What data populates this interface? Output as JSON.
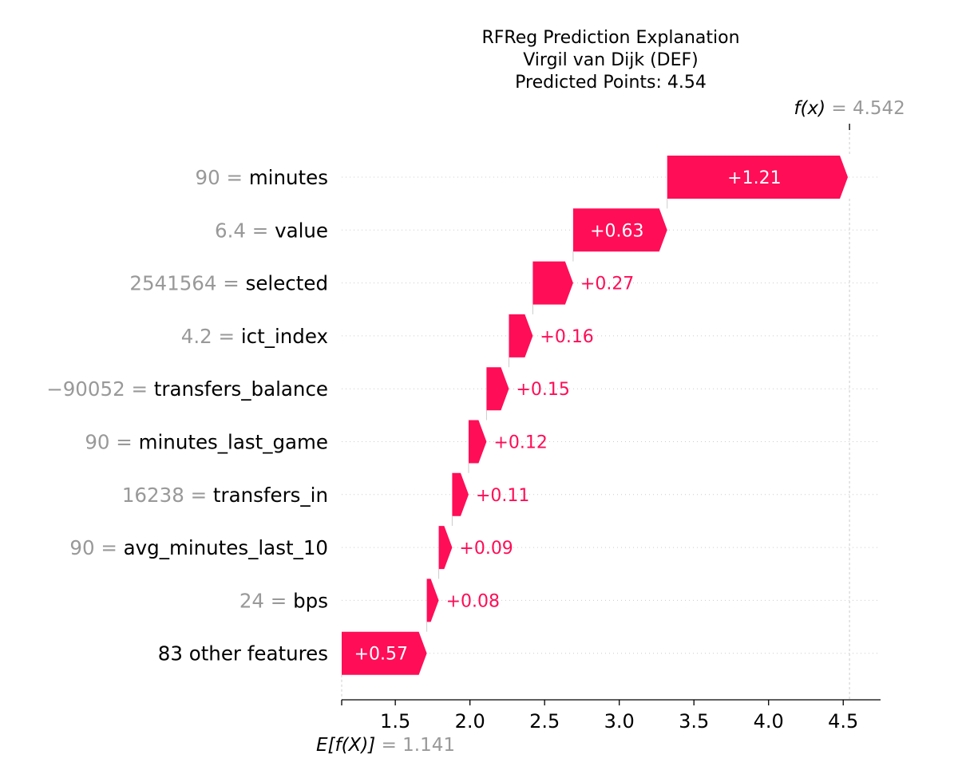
{
  "chart_data": {
    "type": "waterfall",
    "title_lines": [
      "RFReg Prediction Explanation",
      "Virgil van Dijk (DEF)",
      "Predicted Points: 4.54"
    ],
    "base_value": 1.141,
    "base_value_label": "1.141",
    "base_label_prefix": "E[f(X)]",
    "final_value": 4.542,
    "final_value_label": "4.542",
    "final_label_prefix": "f(x)",
    "equals_sign": "=",
    "features": [
      {
        "value": "90",
        "name": "minutes",
        "contribution": 1.21,
        "label": "+1.21"
      },
      {
        "value": "6.4",
        "name": "value",
        "contribution": 0.63,
        "label": "+0.63"
      },
      {
        "value": "2541564",
        "name": "selected",
        "contribution": 0.27,
        "label": "+0.27"
      },
      {
        "value": "4.2",
        "name": "ict_index",
        "contribution": 0.16,
        "label": "+0.16"
      },
      {
        "value": "−90052",
        "name": "transfers_balance",
        "contribution": 0.15,
        "label": "+0.15"
      },
      {
        "value": "90",
        "name": "minutes_last_game",
        "contribution": 0.12,
        "label": "+0.12"
      },
      {
        "value": "16238",
        "name": "transfers_in",
        "contribution": 0.11,
        "label": "+0.11"
      },
      {
        "value": "90",
        "name": "avg_minutes_last_10",
        "contribution": 0.09,
        "label": "+0.09"
      },
      {
        "value": "24",
        "name": "bps",
        "contribution": 0.08,
        "label": "+0.08"
      },
      {
        "value": "",
        "name": "83 other features",
        "contribution": 0.57,
        "label": "+0.57"
      }
    ],
    "x_ticks": [
      1.5,
      2.0,
      2.5,
      3.0,
      3.5,
      4.0,
      4.5
    ],
    "x_tick_labels": [
      "1.5",
      "2.0",
      "2.5",
      "3.0",
      "3.5",
      "4.0",
      "4.5"
    ],
    "xlim": [
      1.141,
      4.75
    ],
    "colors": {
      "positive": "#ff0d57",
      "muted_text": "#999999",
      "gridline": "#cccccc"
    }
  }
}
